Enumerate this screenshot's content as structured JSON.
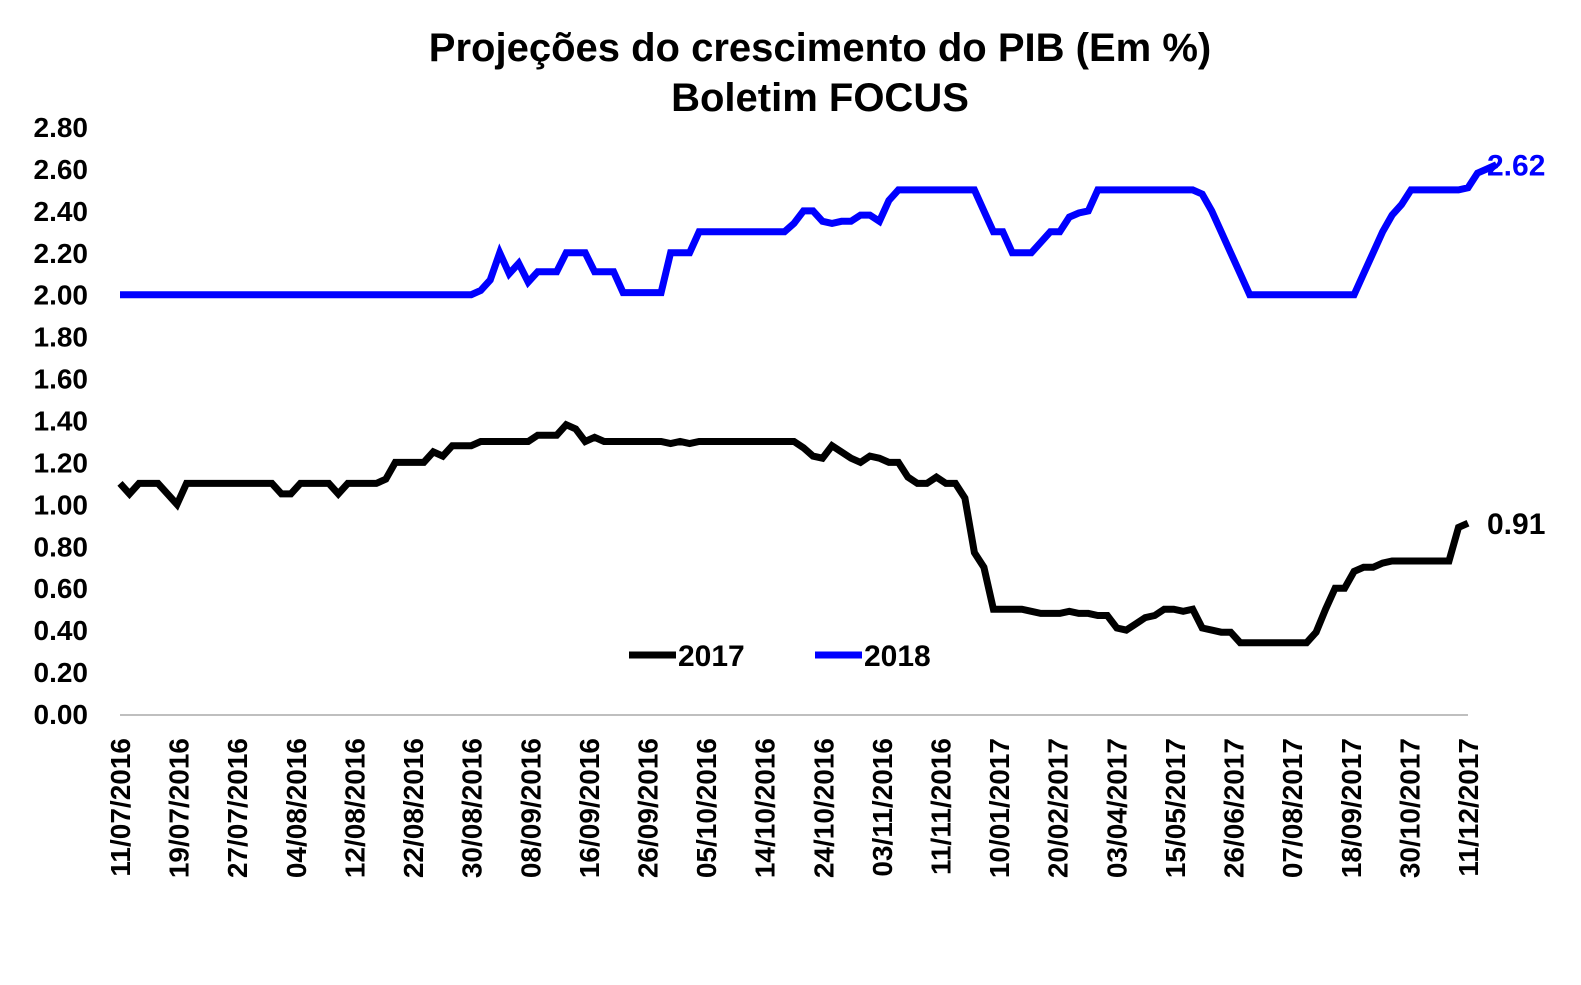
{
  "chart_data": {
    "type": "line",
    "title": "Projeções do crescimento do PIB (Em %)",
    "subtitle": "Boletim FOCUS",
    "xlabel": "",
    "ylabel": "",
    "ylim": [
      0,
      2.8
    ],
    "y_ticks": [
      "0.00",
      "0.20",
      "0.40",
      "0.60",
      "0.80",
      "1.00",
      "1.20",
      "1.40",
      "1.60",
      "1.80",
      "2.00",
      "2.20",
      "2.40",
      "2.60",
      "2.80"
    ],
    "x_tick_labels": [
      "11/07/2016",
      "19/07/2016",
      "27/07/2016",
      "04/08/2016",
      "12/08/2016",
      "22/08/2016",
      "30/08/2016",
      "08/09/2016",
      "16/09/2016",
      "26/09/2016",
      "05/10/2016",
      "14/10/2016",
      "24/10/2016",
      "03/11/2016",
      "11/11/2016",
      "10/01/2017",
      "20/02/2017",
      "03/04/2017",
      "15/05/2017",
      "26/06/2017",
      "07/08/2017",
      "18/09/2017",
      "30/10/2017",
      "11/12/2017"
    ],
    "grid": false,
    "legend_position": "bottom-center",
    "x_units": "weekly reports, 11/07/2016 to 11/12/2017",
    "series": [
      {
        "name": "2017",
        "color": "#000000",
        "end_label": "0.91",
        "values": [
          1.1,
          1.05,
          1.1,
          1.1,
          1.1,
          1.05,
          1.0,
          1.1,
          1.1,
          1.1,
          1.1,
          1.1,
          1.1,
          1.1,
          1.1,
          1.1,
          1.1,
          1.05,
          1.05,
          1.1,
          1.1,
          1.1,
          1.1,
          1.05,
          1.1,
          1.1,
          1.1,
          1.1,
          1.12,
          1.2,
          1.2,
          1.2,
          1.2,
          1.25,
          1.23,
          1.28,
          1.28,
          1.28,
          1.3,
          1.3,
          1.3,
          1.3,
          1.3,
          1.3,
          1.33,
          1.33,
          1.33,
          1.38,
          1.36,
          1.3,
          1.32,
          1.3,
          1.3,
          1.3,
          1.3,
          1.3,
          1.3,
          1.3,
          1.29,
          1.3,
          1.29,
          1.3,
          1.3,
          1.3,
          1.3,
          1.3,
          1.3,
          1.3,
          1.3,
          1.3,
          1.3,
          1.3,
          1.27,
          1.23,
          1.22,
          1.28,
          1.25,
          1.22,
          1.2,
          1.23,
          1.22,
          1.2,
          1.2,
          1.13,
          1.1,
          1.1,
          1.13,
          1.1,
          1.1,
          1.03,
          0.77,
          0.7,
          0.5,
          0.5,
          0.5,
          0.5,
          0.49,
          0.48,
          0.48,
          0.48,
          0.49,
          0.48,
          0.48,
          0.47,
          0.47,
          0.41,
          0.4,
          0.43,
          0.46,
          0.47,
          0.5,
          0.5,
          0.49,
          0.5,
          0.41,
          0.4,
          0.39,
          0.39,
          0.34,
          0.34,
          0.34,
          0.34,
          0.34,
          0.34,
          0.34,
          0.34,
          0.39,
          0.5,
          0.6,
          0.6,
          0.68,
          0.7,
          0.7,
          0.72,
          0.73,
          0.73,
          0.73,
          0.73,
          0.73,
          0.73,
          0.73,
          0.89,
          0.91
        ]
      },
      {
        "name": "2018",
        "color": "#0000ff",
        "end_label": "2.62",
        "values": [
          2.0,
          2.0,
          2.0,
          2.0,
          2.0,
          2.0,
          2.0,
          2.0,
          2.0,
          2.0,
          2.0,
          2.0,
          2.0,
          2.0,
          2.0,
          2.0,
          2.0,
          2.0,
          2.0,
          2.0,
          2.0,
          2.0,
          2.0,
          2.0,
          2.0,
          2.0,
          2.0,
          2.0,
          2.0,
          2.0,
          2.0,
          2.0,
          2.0,
          2.0,
          2.0,
          2.0,
          2.0,
          2.0,
          2.02,
          2.07,
          2.2,
          2.1,
          2.15,
          2.06,
          2.11,
          2.11,
          2.11,
          2.2,
          2.2,
          2.2,
          2.11,
          2.11,
          2.11,
          2.01,
          2.01,
          2.01,
          2.01,
          2.01,
          2.2,
          2.2,
          2.2,
          2.3,
          2.3,
          2.3,
          2.3,
          2.3,
          2.3,
          2.3,
          2.3,
          2.3,
          2.3,
          2.34,
          2.4,
          2.4,
          2.35,
          2.34,
          2.35,
          2.35,
          2.38,
          2.38,
          2.35,
          2.45,
          2.5,
          2.5,
          2.5,
          2.5,
          2.5,
          2.5,
          2.5,
          2.5,
          2.5,
          2.4,
          2.3,
          2.3,
          2.2,
          2.2,
          2.2,
          2.25,
          2.3,
          2.3,
          2.37,
          2.39,
          2.4,
          2.5,
          2.5,
          2.5,
          2.5,
          2.5,
          2.5,
          2.5,
          2.5,
          2.5,
          2.5,
          2.5,
          2.48,
          2.4,
          2.3,
          2.2,
          2.1,
          2.0,
          2.0,
          2.0,
          2.0,
          2.0,
          2.0,
          2.0,
          2.0,
          2.0,
          2.0,
          2.0,
          2.0,
          2.1,
          2.2,
          2.3,
          2.38,
          2.43,
          2.5,
          2.5,
          2.5,
          2.5,
          2.5,
          2.5,
          2.51,
          2.58,
          2.6,
          2.62
        ]
      }
    ]
  }
}
